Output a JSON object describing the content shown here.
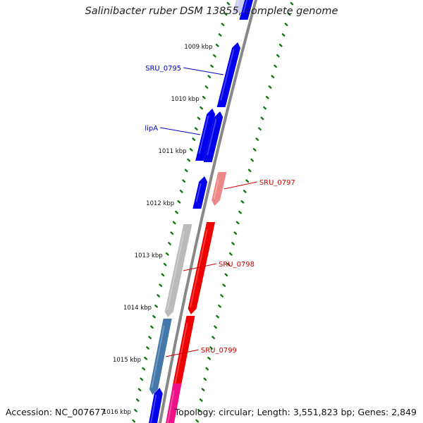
{
  "title": "Salinibacter ruber DSM 13855, complete genome",
  "footer": {
    "accession": "Accession: NC_007677",
    "topology": "Topology: circular; Length: 3,551,823 bp; Genes: 2,849"
  },
  "colors": {
    "backbone": "#888888",
    "forward_gene": "#0000ee",
    "reverse_gene": "#ee0000",
    "tick": "#117711",
    "kbp_label": "#111111",
    "forward_label": "#0000cc",
    "reverse_label": "#cc0000"
  },
  "kbp_labels": [
    "1009 kbp",
    "1010 kbp",
    "1011 kbp",
    "1012 kbp",
    "1013 kbp",
    "1014 kbp",
    "1015 kbp",
    "1016 kbp"
  ],
  "genes": [
    {
      "name": "",
      "strand": "+",
      "color": "#0000ee",
      "from": -20,
      "to": 28,
      "labeled": false
    },
    {
      "name": "",
      "strand": "+",
      "color": "#ccccee",
      "from": -20,
      "to": 18,
      "labeled": false
    },
    {
      "name": "SRU_0795",
      "strand": "+",
      "color": "#0000ee",
      "from": 60,
      "to": 152,
      "labeled": true
    },
    {
      "name": "lipA",
      "strand": "+",
      "color": "#0000ee",
      "from": 154,
      "to": 228,
      "labeled": true
    },
    {
      "name": "",
      "strand": "+",
      "color": "#0000ee",
      "from": 158,
      "to": 230,
      "labeled": false
    },
    {
      "name": "SRU_0797",
      "strand": "-",
      "color": "#ee8888",
      "from": 244,
      "to": 292,
      "labeled": true
    },
    {
      "name": "",
      "strand": "+",
      "color": "#0000ee",
      "from": 250,
      "to": 296,
      "labeled": false
    },
    {
      "name": "",
      "strand": "-",
      "color": "#ee0000",
      "from": 315,
      "to": 446,
      "labeled": false
    },
    {
      "name": "SRU_0798",
      "strand": "-",
      "color": "#bbbbbb",
      "from": 318,
      "to": 450,
      "labeled": true
    },
    {
      "name": "",
      "strand": "-",
      "color": "#ee0000",
      "from": 448,
      "to": 558,
      "labeled": false
    },
    {
      "name": "SRU_0799",
      "strand": "-",
      "color": "#4477aa",
      "from": 452,
      "to": 560,
      "labeled": true
    },
    {
      "name": "",
      "strand": "-",
      "color": "#ee1188",
      "from": 544,
      "to": 620,
      "labeled": false
    },
    {
      "name": "",
      "strand": "+",
      "color": "#0000ee",
      "from": 550,
      "to": 620,
      "labeled": false
    }
  ]
}
